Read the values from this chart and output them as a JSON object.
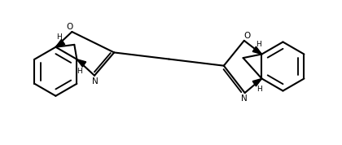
{
  "bg_color": "#ffffff",
  "line_color": "#000000",
  "lw": 1.5,
  "fig_width": 4.2,
  "fig_height": 1.78,
  "dpi": 100,
  "xlim": [
    0,
    10
  ],
  "ylim": [
    0,
    4.24
  ]
}
